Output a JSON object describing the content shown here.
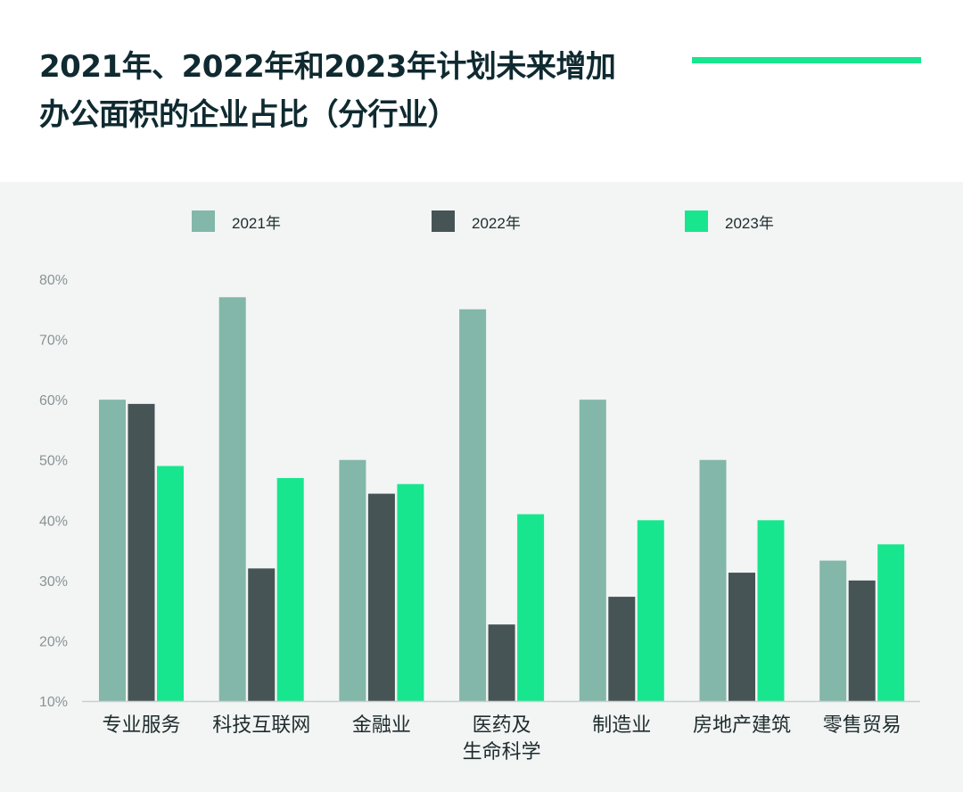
{
  "title": "2021年、2022年和2023年计划未来增加\n办公面积的企业占比（分行业）",
  "colors": {
    "accent_rule": "#18e68f",
    "series_2021": "#82b7a9",
    "series_2022": "#465455",
    "series_2023": "#18e68f",
    "panel_bg": "#f2f5f4"
  },
  "legend": [
    {
      "label": "2021年",
      "color": "#82b7a9"
    },
    {
      "label": "2022年",
      "color": "#465455"
    },
    {
      "label": "2023年",
      "color": "#18e68f"
    }
  ],
  "chart_data": {
    "type": "bar",
    "title": "2021年、2022年和2023年计划未来增加办公面积的企业占比（分行业）",
    "xlabel": "",
    "ylabel": "",
    "ylim": [
      10,
      80
    ],
    "yticks": [
      "10%",
      "20%",
      "30%",
      "40%",
      "50%",
      "60%",
      "70%",
      "80%"
    ],
    "grid": false,
    "legend_position": "top",
    "categories": [
      "专业服务",
      "科技互联网",
      "金融业",
      "医药及\n生命科学",
      "制造业",
      "房地产建筑",
      "零售贸易"
    ],
    "series": [
      {
        "name": "2021年",
        "values": [
          60,
          77,
          50,
          75,
          60,
          50,
          33.3
        ]
      },
      {
        "name": "2022年",
        "values": [
          59.3,
          32,
          44.4,
          22.7,
          27.3,
          31.3,
          30
        ]
      },
      {
        "name": "2023年",
        "values": [
          49,
          47,
          46,
          41,
          40,
          40,
          36
        ]
      }
    ]
  }
}
